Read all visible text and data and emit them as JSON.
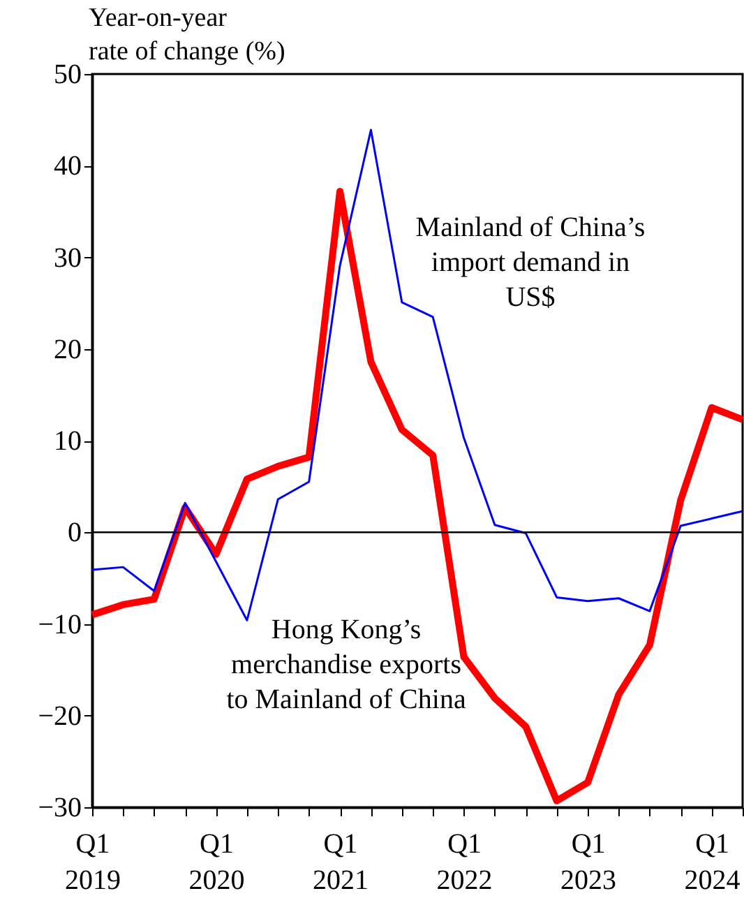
{
  "chart_data": {
    "type": "line",
    "ylabel": "Year-on-year rate of change (%)",
    "categories": [
      "Q1 2019",
      null,
      null,
      null,
      "Q1 2020",
      null,
      null,
      null,
      "Q1 2021",
      null,
      null,
      null,
      "Q1 2022",
      null,
      null,
      null,
      "Q1 2023",
      null,
      null,
      null,
      "Q1 2024",
      null
    ],
    "series": [
      {
        "name": "Hong Kong’s merchandise exports to Mainland of China",
        "color": "#ff0000",
        "values": [
          -9.0,
          -7.9,
          -7.3,
          2.7,
          -2.4,
          5.8,
          7.2,
          8.2,
          37.2,
          18.6,
          11.2,
          8.4,
          -13.6,
          -18.1,
          -21.2,
          -29.3,
          -27.3,
          -17.7,
          -12.3,
          3.5,
          13.6,
          12.3
        ]
      },
      {
        "name": "Mainland of China’s import demand in US$",
        "color": "#0000ff",
        "values": [
          -4.1,
          -3.8,
          -6.4,
          3.2,
          -3.2,
          -9.6,
          3.6,
          5.5,
          29.1,
          43.9,
          25.1,
          23.5,
          10.3,
          0.8,
          -0.1,
          -7.1,
          -7.5,
          -7.2,
          -8.6,
          0.7,
          1.5,
          2.3
        ]
      }
    ],
    "ylim": [
      -30,
      50
    ],
    "yticks": [
      -30,
      -20,
      -10,
      0,
      10,
      20,
      30,
      40,
      50
    ],
    "ref_lines": [
      {
        "axis": "y",
        "value": 0,
        "color": "#000000"
      }
    ],
    "grid": false,
    "marker": "none",
    "line_style": "solid"
  }
}
